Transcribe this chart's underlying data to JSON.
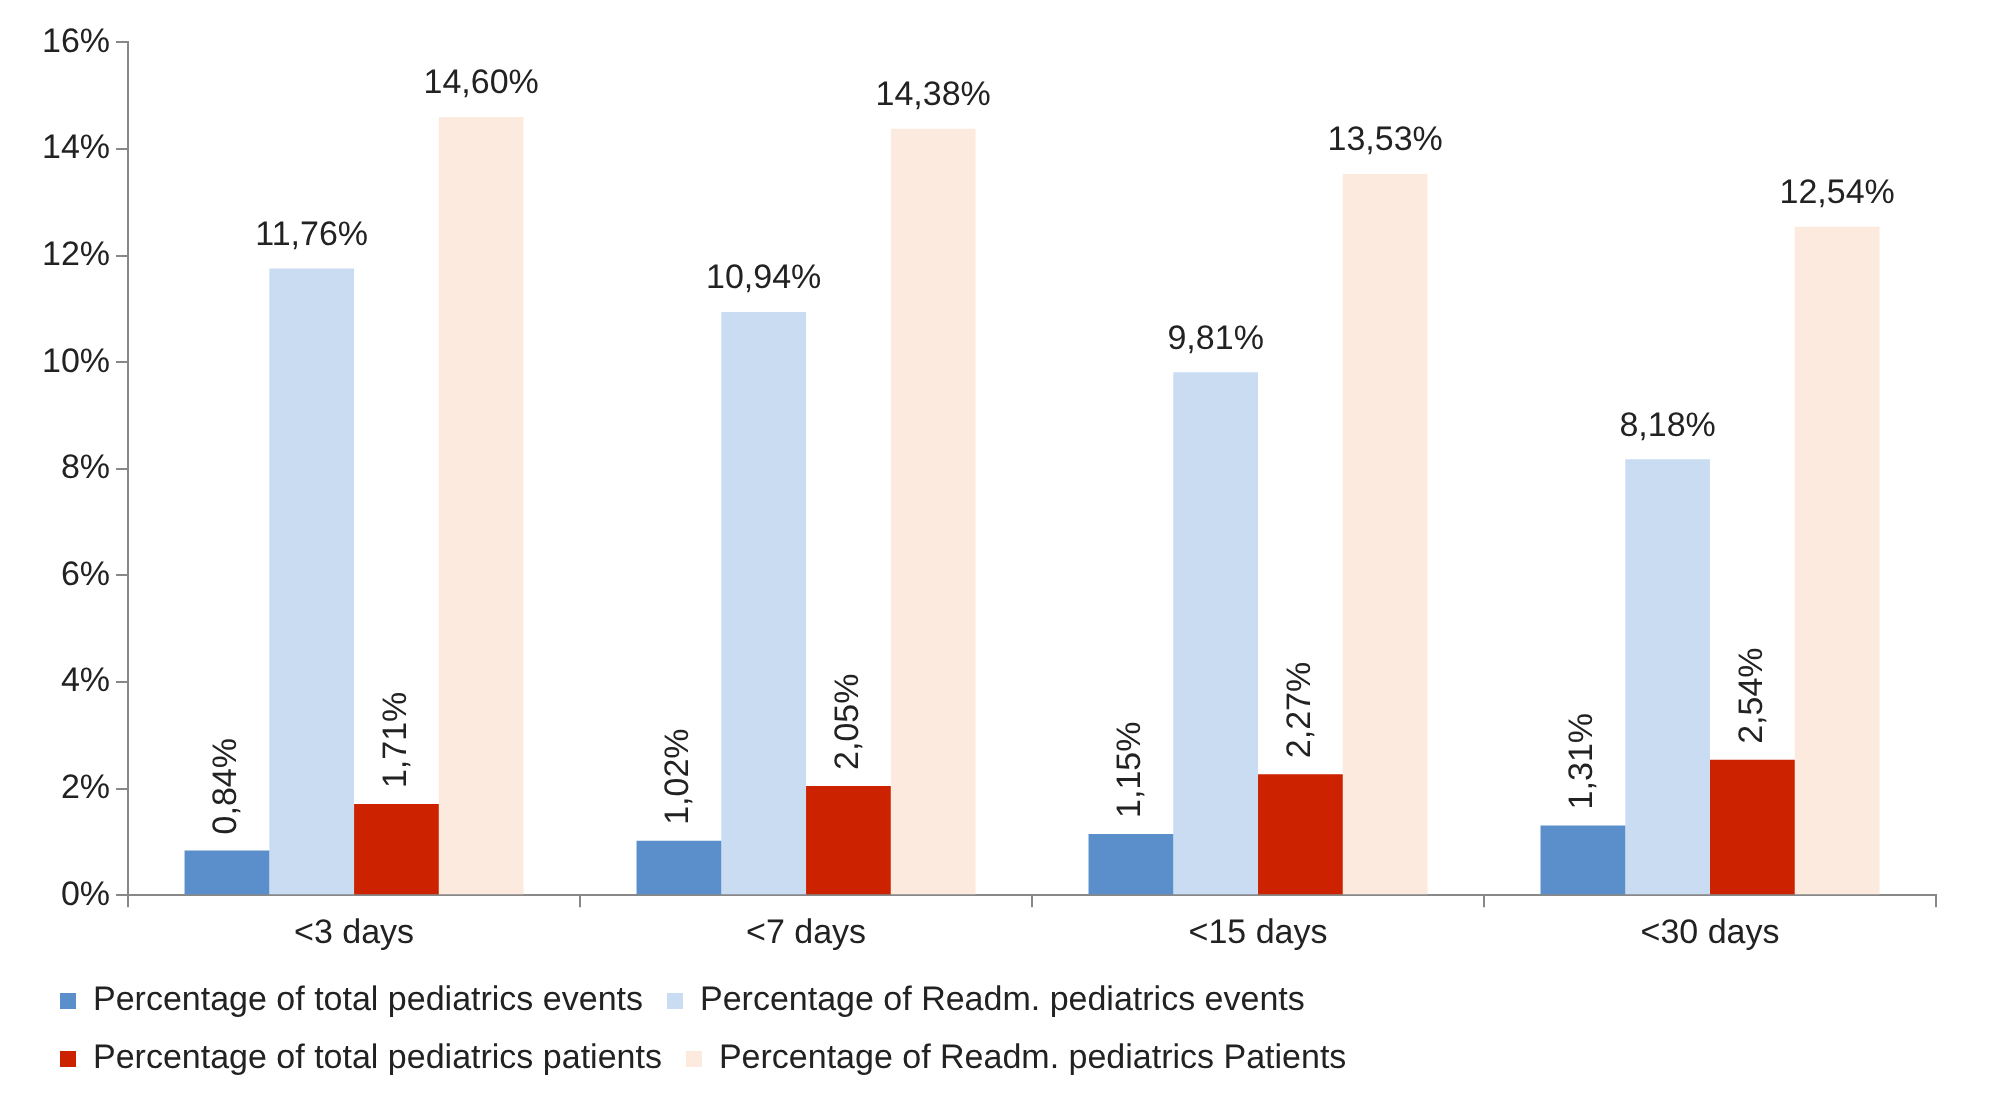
{
  "chart_data": {
    "type": "bar",
    "categories": [
      "<3 days",
      "<7 days",
      "<15 days",
      "<30 days"
    ],
    "series": [
      {
        "name": "Percentage of total pediatrics events",
        "color": "#5b8fcc",
        "values": [
          0.84,
          1.02,
          1.15,
          1.31
        ],
        "value_labels": [
          "0,84%",
          "1,02%",
          "1,15%",
          "1,31%"
        ]
      },
      {
        "name": "Percentage of Readm. pediatrics events",
        "color": "#c9dcf2",
        "values": [
          11.76,
          10.94,
          9.81,
          8.18
        ],
        "value_labels": [
          "11,76%",
          "10,94%",
          "9,81%",
          "8,18%"
        ]
      },
      {
        "name": "Percentage of total pediatrics patients",
        "color": "#cc2200",
        "values": [
          1.71,
          2.05,
          2.27,
          2.54
        ],
        "value_labels": [
          "1,71%",
          "2,05%",
          "2,27%",
          "2,54%"
        ]
      },
      {
        "name": "Percentage of Readm. pediatrics Patients",
        "color": "#fdeade",
        "values": [
          14.6,
          14.38,
          13.53,
          12.54
        ],
        "value_labels": [
          "14,60%",
          "14,38%",
          "13,53%",
          "12,54%"
        ]
      }
    ],
    "ylim": [
      0,
      16
    ],
    "yticks": [
      {
        "value": 0,
        "label": "0%"
      },
      {
        "value": 2,
        "label": "2%"
      },
      {
        "value": 4,
        "label": "4%"
      },
      {
        "value": 6,
        "label": "6%"
      },
      {
        "value": 8,
        "label": "8%"
      },
      {
        "value": 10,
        "label": "10%"
      },
      {
        "value": 12,
        "label": "12%"
      },
      {
        "value": 14,
        "label": "14%"
      },
      {
        "value": 16,
        "label": "16%"
      }
    ],
    "grid": false,
    "legend": "bottom"
  }
}
